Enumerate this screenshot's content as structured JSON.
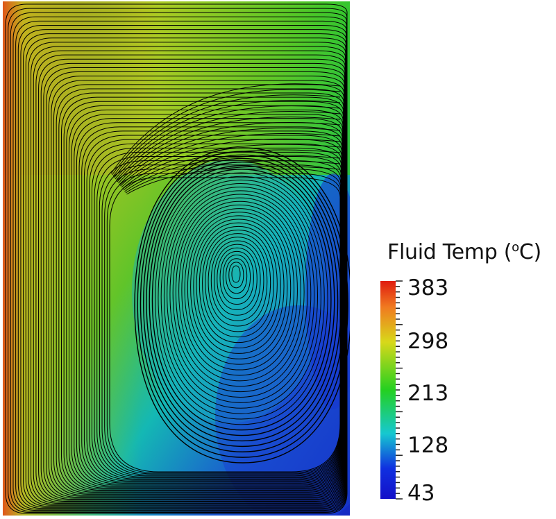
{
  "legend": {
    "title_prefix": "Fluid Temp (",
    "title_sup": "o",
    "title_suffix": "C)",
    "min": 43,
    "max": 383,
    "ticks": [
      "383",
      "298",
      "213",
      "128",
      "43"
    ],
    "colors": [
      "#e01c10",
      "#f07a20",
      "#d8d81a",
      "#24d020",
      "#16c8d0",
      "#1030e0",
      "#1410c8"
    ]
  }
}
